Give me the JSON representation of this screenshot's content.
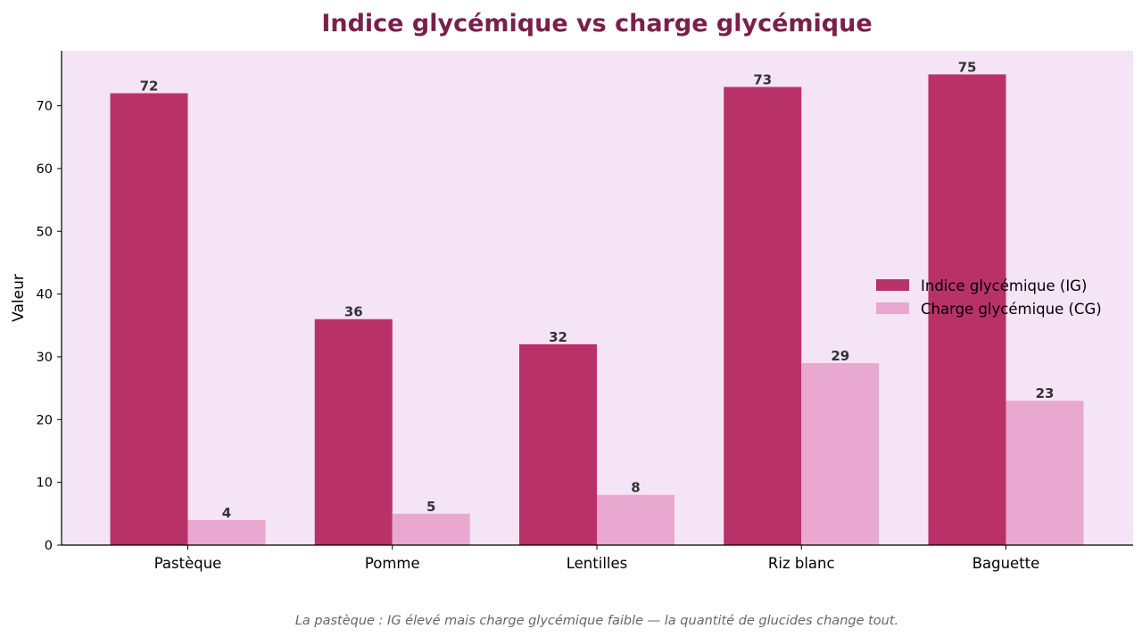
{
  "chart_data": {
    "type": "bar",
    "title": "Indice glycémique vs charge glycémique",
    "xlabel": "",
    "ylabel": "Valeur",
    "categories": [
      "Pastèque",
      "Pomme",
      "Lentilles",
      "Riz blanc",
      "Baguette"
    ],
    "series": [
      {
        "name": "Indice glycémique (IG)",
        "values": [
          72,
          36,
          32,
          73,
          75
        ],
        "color": "#b83268"
      },
      {
        "name": "Charge glycémique (CG)",
        "values": [
          4,
          5,
          8,
          29,
          23
        ],
        "color": "#e8a8d0"
      }
    ],
    "ylim": [
      0,
      78.75
    ],
    "yticks": [
      0,
      10,
      20,
      30,
      40,
      50,
      60,
      70
    ],
    "grid": false,
    "legend": "center-right",
    "annotation": "La pastèque : IG élevé mais charge glycémique faible — la quantité de glucides change tout.",
    "colors": {
      "plot_background": "#f5e4f5",
      "title": "#7a1f4a",
      "data_label": "#333333",
      "annotation": "#666666"
    }
  }
}
